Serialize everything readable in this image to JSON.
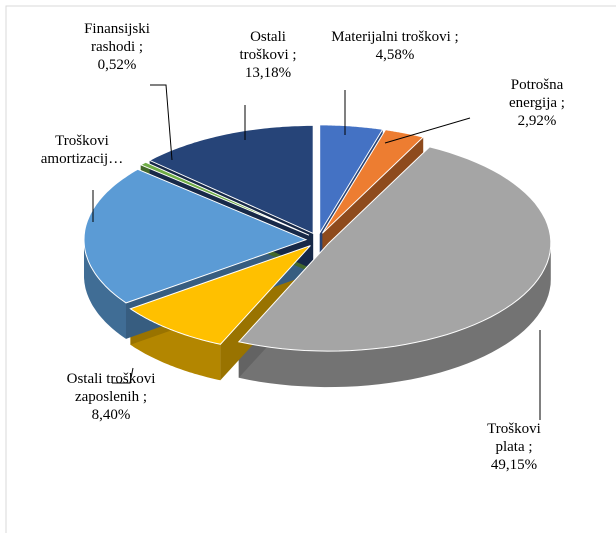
{
  "chart_data": {
    "type": "pie3d",
    "value_labels": [
      "Materijalni troškovi ; 4,58%",
      "Potrošna energija ; 2,92%",
      "Troškovi plata ; 49,15%",
      "Ostali troškovi zaposlenih ; 8,40%",
      "Troškovi amortizacij…",
      "Finansijski rashodi ; 0,52%",
      "Ostali troškovi ; 13,18%"
    ],
    "values": [
      4.58,
      2.92,
      49.15,
      8.4,
      21.25,
      0.52,
      13.18
    ],
    "colors": [
      "#4472c4",
      "#ed7d31",
      "#a5a5a5",
      "#ffc000",
      "#5b9bd5",
      "#70ad47",
      "#264478"
    ],
    "exploded": true
  }
}
